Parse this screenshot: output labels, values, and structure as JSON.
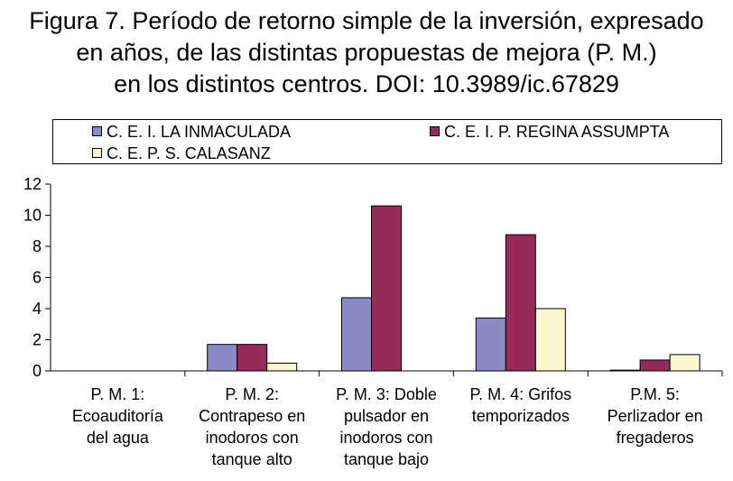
{
  "title_lines": [
    "Figura 7. Período de retorno simple de la inversión, expresado",
    "en años, de las distintas propuestas de mejora (P. M.)",
    "en los distintos centros. DOI: 10.3989/ic.67829"
  ],
  "chart_data": {
    "type": "bar",
    "title": "Figura 7. Período de retorno simple de la inversión, expresado en años, de las distintas propuestas de mejora (P. M.) en los distintos centros. DOI: 10.3989/ic.67829",
    "categories": [
      [
        "P. M. 1:",
        "Ecoauditoría",
        "del agua"
      ],
      [
        "P. M. 2:",
        "Contrapeso en",
        "inodoros con",
        "tanque alto"
      ],
      [
        "P. M. 3: Doble",
        "pulsador en",
        "inodoros con",
        "tanque bajo"
      ],
      [
        "P. M. 4: Grifos",
        "temporizados"
      ],
      [
        "P.M. 5:",
        "Perlizador en",
        "fregaderos"
      ]
    ],
    "series": [
      {
        "name": "C. E. I. LA INMACULADA",
        "color": "#8b8ac4",
        "values": [
          0,
          1.7,
          4.7,
          3.4,
          0.05
        ]
      },
      {
        "name": "C. E. I. P. REGINA ASSUMPTA",
        "color": "#962a58",
        "values": [
          0,
          1.7,
          10.6,
          8.75,
          0.7
        ]
      },
      {
        "name": "C. E. P. S. CALASANZ",
        "color": "#fbf7cf",
        "values": [
          0,
          0.5,
          0,
          4.0,
          1.05
        ]
      }
    ],
    "ylim": [
      0,
      12
    ],
    "yticks": [
      0,
      2,
      4,
      6,
      8,
      10,
      12
    ],
    "grid": false,
    "legend_position": "top"
  }
}
